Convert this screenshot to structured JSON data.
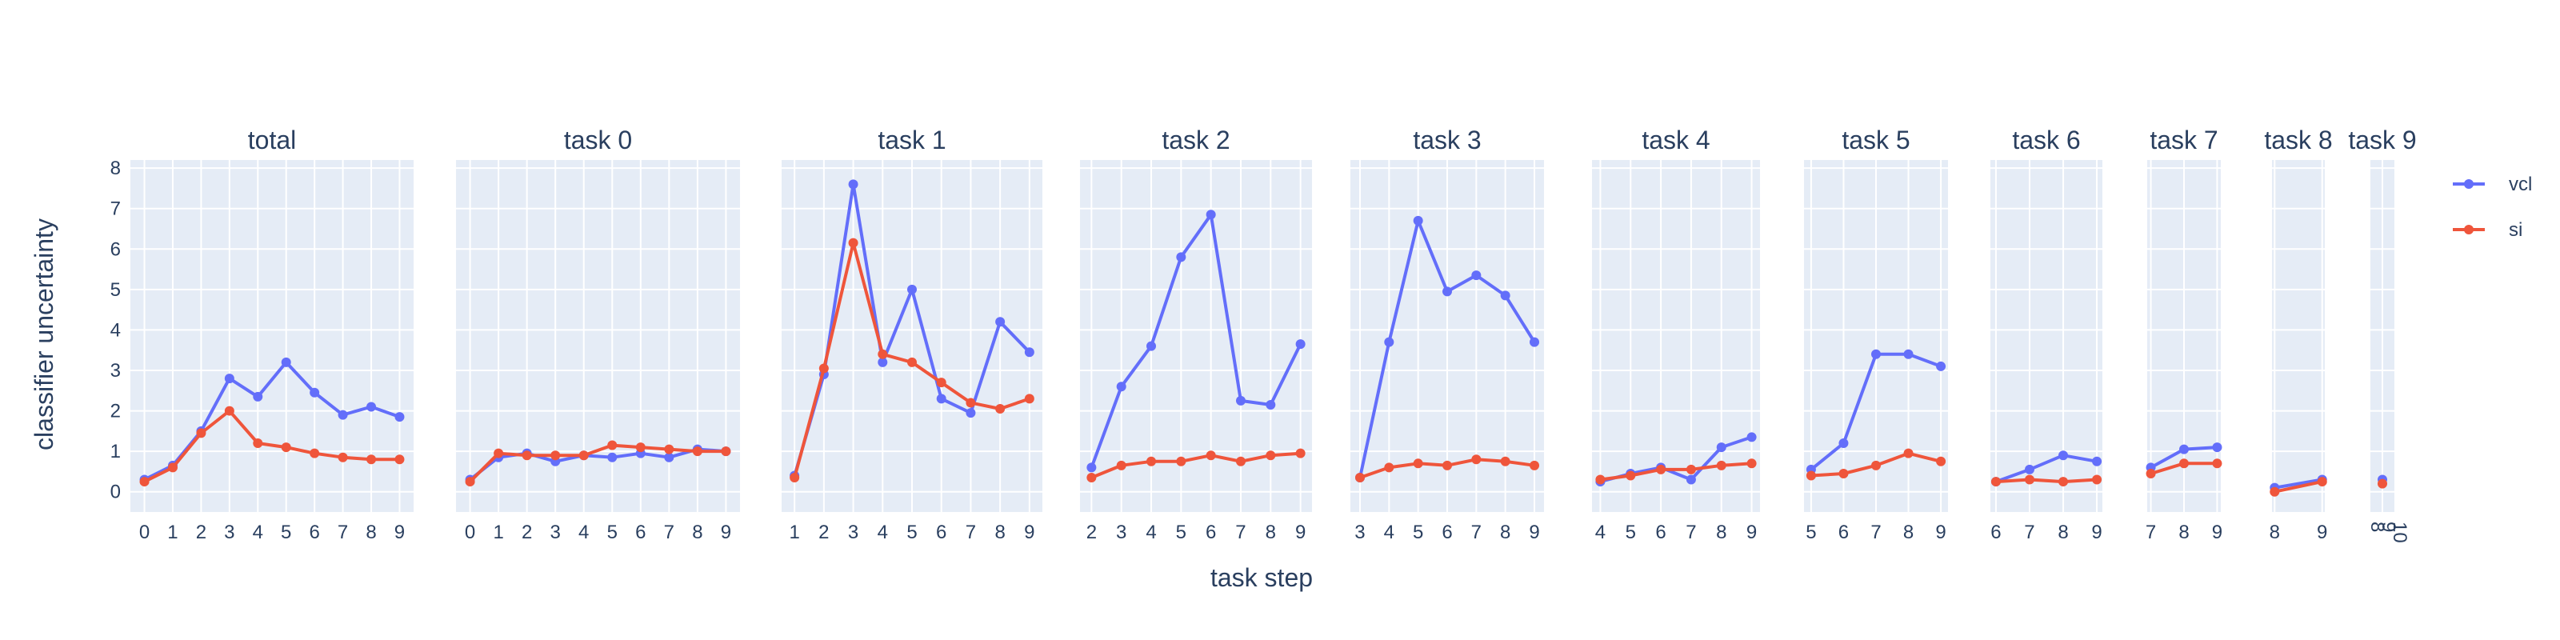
{
  "chart_data": {
    "type": "line",
    "xlabel": "task step",
    "ylabel": "classifier uncertainty",
    "ylim": [
      -0.5,
      8.2
    ],
    "yticks": [
      0,
      1,
      2,
      3,
      4,
      5,
      6,
      7,
      8
    ],
    "grid": true,
    "legend_position": "top-right",
    "legend": [
      {
        "name": "vcl",
        "color": "#636efa"
      },
      {
        "name": "si",
        "color": "#ef553b"
      }
    ],
    "panels": [
      {
        "title": "total",
        "x": [
          0,
          1,
          2,
          3,
          4,
          5,
          6,
          7,
          8,
          9
        ],
        "series": [
          {
            "name": "vcl",
            "values": [
              0.3,
              0.65,
              1.5,
              2.8,
              2.35,
              3.2,
              2.45,
              1.9,
              2.1,
              1.85
            ]
          },
          {
            "name": "si",
            "values": [
              0.25,
              0.6,
              1.45,
              2.0,
              1.2,
              1.1,
              0.95,
              0.85,
              0.8,
              0.8
            ]
          }
        ]
      },
      {
        "title": "task 0",
        "x": [
          0,
          1,
          2,
          3,
          4,
          5,
          6,
          7,
          8,
          9
        ],
        "series": [
          {
            "name": "vcl",
            "values": [
              0.3,
              0.85,
              0.95,
              0.75,
              0.9,
              0.85,
              0.95,
              0.85,
              1.05,
              1.0
            ]
          },
          {
            "name": "si",
            "values": [
              0.25,
              0.95,
              0.9,
              0.9,
              0.9,
              1.15,
              1.1,
              1.05,
              1.0,
              1.0
            ]
          }
        ]
      },
      {
        "title": "task 1",
        "x": [
          1,
          2,
          3,
          4,
          5,
          6,
          7,
          8,
          9
        ],
        "series": [
          {
            "name": "vcl",
            "values": [
              0.4,
              2.9,
              7.6,
              3.2,
              5.0,
              2.3,
              1.95,
              4.2,
              3.45
            ]
          },
          {
            "name": "si",
            "values": [
              0.35,
              3.05,
              6.15,
              3.4,
              3.2,
              2.7,
              2.2,
              2.05,
              2.3
            ]
          }
        ]
      },
      {
        "title": "task 2",
        "x": [
          2,
          3,
          4,
          5,
          6,
          7,
          8,
          9
        ],
        "series": [
          {
            "name": "vcl",
            "values": [
              0.6,
              2.6,
              3.6,
              5.8,
              6.85,
              2.25,
              2.15,
              3.65
            ]
          },
          {
            "name": "si",
            "values": [
              0.35,
              0.65,
              0.75,
              0.75,
              0.9,
              0.75,
              0.9,
              0.95
            ]
          }
        ]
      },
      {
        "title": "task 3",
        "x": [
          3,
          4,
          5,
          6,
          7,
          8,
          9
        ],
        "series": [
          {
            "name": "vcl",
            "values": [
              0.35,
              3.7,
              6.7,
              4.95,
              5.35,
              4.85,
              3.7
            ]
          },
          {
            "name": "si",
            "values": [
              0.35,
              0.6,
              0.7,
              0.65,
              0.8,
              0.75,
              0.65
            ]
          }
        ]
      },
      {
        "title": "task 4",
        "x": [
          4,
          5,
          6,
          7,
          8,
          9
        ],
        "series": [
          {
            "name": "vcl",
            "values": [
              0.25,
              0.45,
              0.6,
              0.3,
              1.1,
              1.35
            ]
          },
          {
            "name": "si",
            "values": [
              0.3,
              0.4,
              0.55,
              0.55,
              0.65,
              0.7
            ]
          }
        ]
      },
      {
        "title": "task 5",
        "x": [
          5,
          6,
          7,
          8,
          9
        ],
        "series": [
          {
            "name": "vcl",
            "values": [
              0.55,
              1.2,
              3.4,
              3.4,
              3.1
            ]
          },
          {
            "name": "si",
            "values": [
              0.4,
              0.45,
              0.65,
              0.95,
              0.75
            ]
          }
        ]
      },
      {
        "title": "task 6",
        "x": [
          6,
          7,
          8,
          9
        ],
        "series": [
          {
            "name": "vcl",
            "values": [
              0.25,
              0.55,
              0.9,
              0.75
            ]
          },
          {
            "name": "si",
            "values": [
              0.25,
              0.3,
              0.25,
              0.3
            ]
          }
        ]
      },
      {
        "title": "task 7",
        "x": [
          7,
          8,
          9
        ],
        "series": [
          {
            "name": "vcl",
            "values": [
              0.6,
              1.05,
              1.1
            ]
          },
          {
            "name": "si",
            "values": [
              0.45,
              0.7,
              0.7
            ]
          }
        ]
      },
      {
        "title": "task 8",
        "x": [
          8,
          9
        ],
        "series": [
          {
            "name": "vcl",
            "values": [
              0.1,
              0.3
            ]
          },
          {
            "name": "si",
            "values": [
              0.0,
              0.25
            ]
          }
        ]
      },
      {
        "title": "task 9",
        "x": [
          9
        ],
        "xticks": [
          "8",
          "9",
          "10"
        ],
        "series": [
          {
            "name": "vcl",
            "values": [
              0.3
            ]
          },
          {
            "name": "si",
            "values": [
              0.2
            ]
          }
        ]
      }
    ]
  }
}
